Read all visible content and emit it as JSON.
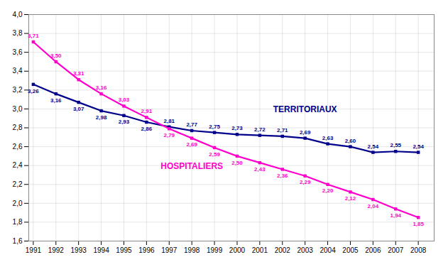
{
  "chart_data": {
    "type": "line",
    "x": [
      1991,
      1992,
      1993,
      1994,
      1995,
      1996,
      1997,
      1998,
      1999,
      2000,
      2001,
      2002,
      2003,
      2004,
      2005,
      2006,
      2007,
      2008
    ],
    "series": [
      {
        "name": "TERRITORIAUX",
        "color": "#00008B",
        "marker": "square",
        "values": [
          3.26,
          3.16,
          3.07,
          2.98,
          2.93,
          2.86,
          2.81,
          2.77,
          2.75,
          2.73,
          2.72,
          2.71,
          2.69,
          2.63,
          2.6,
          2.54,
          2.55,
          2.54
        ],
        "value_labels": [
          "3,26",
          "3,16",
          "3,07",
          "2,98",
          "2,93",
          "2,86",
          "2,81",
          "2,77",
          "2,75",
          "2,73",
          "2,72",
          "2,71",
          "2,69",
          "2,63",
          "2,60",
          "2,54",
          "2,55",
          "2,54"
        ]
      },
      {
        "name": "HOSPITALIERS",
        "color": "#FF00CC",
        "marker": "square",
        "values": [
          3.71,
          3.5,
          3.31,
          3.16,
          3.03,
          2.91,
          2.79,
          2.69,
          2.59,
          2.5,
          2.43,
          2.36,
          2.29,
          2.2,
          2.12,
          2.04,
          1.94,
          1.85
        ],
        "value_labels": [
          "3,71",
          "3,50",
          "3,31",
          "3,16",
          "3,03",
          "2,91",
          "2,79",
          "2,69",
          "2,59",
          "2,50",
          "2,43",
          "2,36",
          "2,29",
          "2,20",
          "2,12",
          "2,04",
          "1,94",
          "1,85"
        ]
      }
    ],
    "xlim": [
      1990.8,
      2008.7
    ],
    "xticks": [
      1991,
      1992,
      1993,
      1994,
      1995,
      1996,
      1997,
      1998,
      1999,
      2000,
      2001,
      2002,
      2003,
      2004,
      2005,
      2006,
      2007,
      2008
    ],
    "ylim": [
      1.6,
      4.0
    ],
    "yticks": [
      {
        "value": 1.6,
        "label": "1,6"
      },
      {
        "value": 1.8,
        "label": "1,8"
      },
      {
        "value": 2.0,
        "label": "2,0"
      },
      {
        "value": 2.2,
        "label": "2,2"
      },
      {
        "value": 2.4,
        "label": "2,4"
      },
      {
        "value": 2.6,
        "label": "2,6"
      },
      {
        "value": 2.8,
        "label": "2,8"
      },
      {
        "value": 3.0,
        "label": "3,0"
      },
      {
        "value": 3.2,
        "label": "3,2"
      },
      {
        "value": 3.4,
        "label": "3,4"
      },
      {
        "value": 3.6,
        "label": "3,6"
      },
      {
        "value": 3.8,
        "label": "3,8"
      },
      {
        "value": 4.0,
        "label": "4,0"
      }
    ],
    "grid": true,
    "data_labels": true
  }
}
